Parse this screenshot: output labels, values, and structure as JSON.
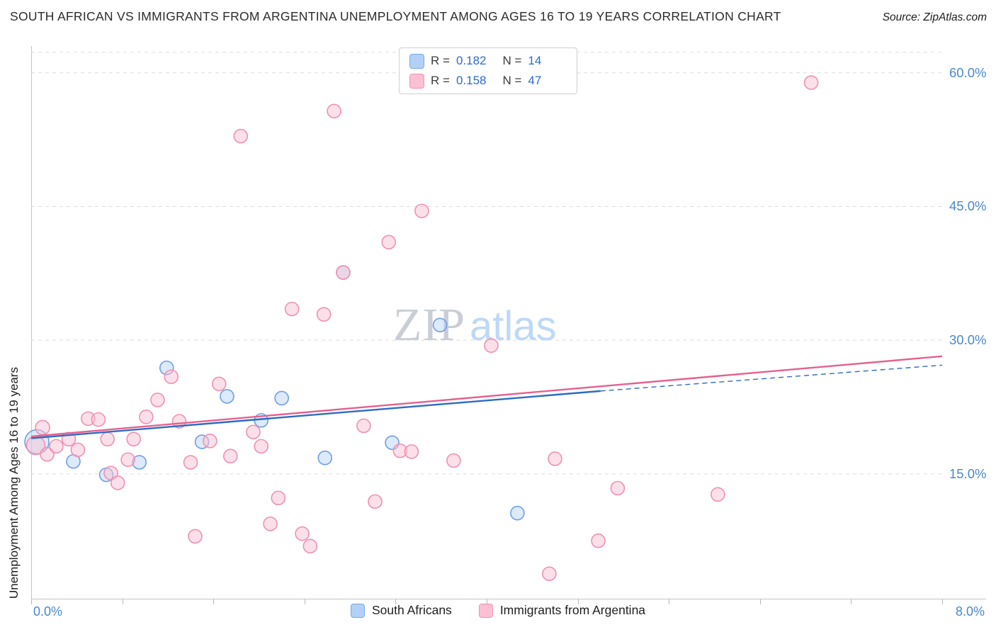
{
  "header": {
    "title": "SOUTH AFRICAN VS IMMIGRANTS FROM ARGENTINA UNEMPLOYMENT AMONG AGES 16 TO 19 YEARS CORRELATION CHART",
    "source": "Source: ZipAtlas.com"
  },
  "axes": {
    "y_label": "Unemployment Among Ages 16 to 19 years",
    "y_ticks": [
      "60.0%",
      "45.0%",
      "30.0%",
      "15.0%"
    ],
    "x_tick_left": "0.0%",
    "x_tick_right": "8.0%"
  },
  "legend_box": {
    "rows": [
      {
        "r_label": "R =",
        "r_value": "0.182",
        "n_label": "N =",
        "n_value": "14"
      },
      {
        "r_label": "R =",
        "r_value": "0.158",
        "n_label": "N =",
        "n_value": "47"
      }
    ]
  },
  "bottom_legend": {
    "items": [
      {
        "label": "South Africans"
      },
      {
        "label": "Immigrants from Argentina"
      }
    ]
  },
  "watermark": {
    "part1": "ZIP",
    "part2": "atlas"
  },
  "chart_data": {
    "type": "scatter",
    "title": "SOUTH AFRICAN VS IMMIGRANTS FROM ARGENTINA UNEMPLOYMENT AMONG AGES 16 TO 19 YEARS CORRELATION CHART",
    "xlabel": "",
    "ylabel": "Unemployment Among Ages 16 to 19 years",
    "xlim": [
      0,
      8
    ],
    "ylim": [
      1,
      63
    ],
    "gridlines_y": [
      62.3,
      60,
      45,
      30,
      15
    ],
    "grid": "dashed horizontal",
    "legend_position": "bottom center",
    "correlation": [
      {
        "name": "South Africans",
        "R": 0.182,
        "N": 14
      },
      {
        "name": "Immigrants from Argentina",
        "R": 0.158,
        "N": 47
      }
    ],
    "series": [
      {
        "name": "South Africans",
        "fill": "#aecdf5",
        "fill_opacity": 0.42,
        "stroke": "#6f9fe0",
        "points": [
          [
            0.05,
            18.6,
            17
          ],
          [
            0.37,
            16.4
          ],
          [
            0.66,
            14.9
          ],
          [
            0.95,
            16.3
          ],
          [
            1.19,
            26.9
          ],
          [
            1.5,
            18.6
          ],
          [
            1.72,
            23.7
          ],
          [
            2.02,
            21.0
          ],
          [
            2.2,
            23.5
          ],
          [
            2.58,
            16.8
          ],
          [
            2.74,
            37.6
          ],
          [
            3.17,
            18.5
          ],
          [
            3.59,
            31.7
          ],
          [
            4.27,
            10.6
          ]
        ]
      },
      {
        "name": "Immigrants from Argentina",
        "fill": "#f9c2d4",
        "fill_opacity": 0.5,
        "stroke": "#f090b2",
        "points": [
          [
            0.04,
            18.2,
            13
          ],
          [
            0.1,
            20.2,
            10
          ],
          [
            0.14,
            17.2
          ],
          [
            0.22,
            18.1
          ],
          [
            0.33,
            18.9
          ],
          [
            0.41,
            17.7
          ],
          [
            0.5,
            21.2
          ],
          [
            0.59,
            21.1
          ],
          [
            0.67,
            18.9
          ],
          [
            0.7,
            15.1
          ],
          [
            0.76,
            14.0
          ],
          [
            0.85,
            16.6
          ],
          [
            0.9,
            18.9
          ],
          [
            1.01,
            21.4
          ],
          [
            1.11,
            23.3
          ],
          [
            1.23,
            25.9
          ],
          [
            1.3,
            20.9
          ],
          [
            1.4,
            16.3
          ],
          [
            1.44,
            8.0
          ],
          [
            1.57,
            18.7
          ],
          [
            1.65,
            25.1
          ],
          [
            1.75,
            17.0
          ],
          [
            1.84,
            52.9
          ],
          [
            1.95,
            19.7
          ],
          [
            2.02,
            18.1
          ],
          [
            2.1,
            9.4
          ],
          [
            2.17,
            12.3
          ],
          [
            2.29,
            33.5
          ],
          [
            2.38,
            8.3
          ],
          [
            2.45,
            6.9
          ],
          [
            2.57,
            32.9
          ],
          [
            2.66,
            55.7
          ],
          [
            2.74,
            37.6
          ],
          [
            2.92,
            20.4
          ],
          [
            3.02,
            11.9
          ],
          [
            3.14,
            41.0
          ],
          [
            3.24,
            17.6
          ],
          [
            3.34,
            17.5
          ],
          [
            3.43,
            44.5
          ],
          [
            3.71,
            16.5
          ],
          [
            4.04,
            29.4
          ],
          [
            4.55,
            3.8
          ],
          [
            4.6,
            16.7
          ],
          [
            4.98,
            7.5
          ],
          [
            5.15,
            13.4
          ],
          [
            6.03,
            12.7
          ],
          [
            6.85,
            58.9
          ]
        ]
      }
    ],
    "trend_lines": [
      {
        "name": "South Africans",
        "color": "#2e6bc4",
        "segments": [
          {
            "from": [
              0,
              19.0
            ],
            "to": [
              5.0,
              24.3
            ],
            "style": "solid"
          },
          {
            "from": [
              5.0,
              24.3
            ],
            "to": [
              8,
              27.2
            ],
            "style": "dashed"
          }
        ]
      },
      {
        "name": "Immigrants from Argentina",
        "color": "#e4618e",
        "segments": [
          {
            "from": [
              0,
              19.2
            ],
            "to": [
              8,
              28.2
            ],
            "style": "solid"
          }
        ]
      }
    ]
  }
}
